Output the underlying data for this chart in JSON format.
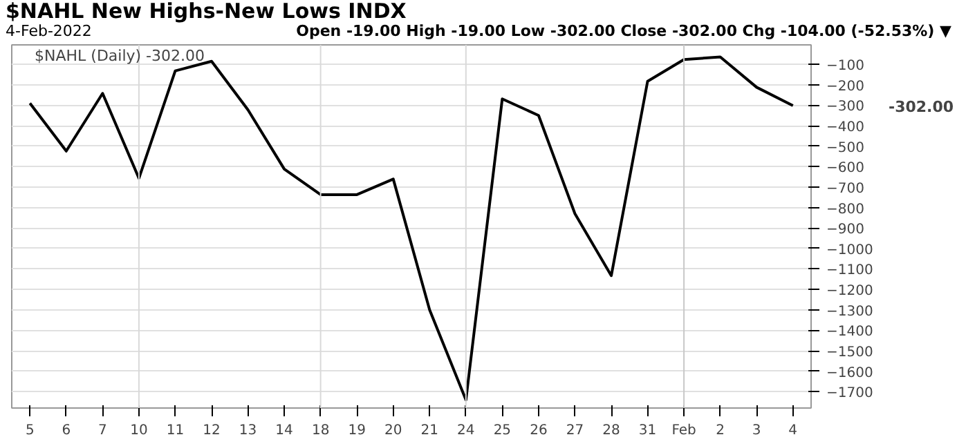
{
  "chart_data": {
    "type": "line",
    "title": "$NAHL New Highs-New Lows INDX",
    "subtitle": "4-Feb-2022",
    "annotations": [
      "Open -19.00  High -19.00  Low -302.00  Close -302.00  Chg -104.00 (-52.53%) ▼",
      "-302.00"
    ],
    "categories": [
      "5",
      "6",
      "7",
      "10",
      "11",
      "12",
      "13",
      "14",
      "18",
      "19",
      "20",
      "21",
      "24",
      "25",
      "26",
      "27",
      "28",
      "31",
      "Feb",
      "2",
      "3",
      "4"
    ],
    "series": [
      {
        "name": "$NAHL (Daily) -302.00",
        "color": "#000000",
        "values": [
          -290,
          -524,
          -242,
          -657,
          -132,
          -85,
          -322,
          -612,
          -737,
          -737,
          -661,
          -1300,
          -1740,
          -269,
          -350,
          -830,
          -1133,
          -183,
          -77,
          -64,
          -212,
          -302
        ]
      }
    ],
    "ylim": [
      -1780,
      -5
    ],
    "yticks": [
      -100,
      -200,
      -300,
      -400,
      -500,
      -600,
      -700,
      -800,
      -900,
      -1000,
      -1100,
      -1200,
      -1300,
      -1400,
      -1500,
      -1600,
      -1700
    ],
    "grid": "y",
    "ref_lines": [
      {
        "axis": "x",
        "value": "10",
        "color": "#d9d9d9"
      },
      {
        "axis": "x",
        "value": "18",
        "color": "#d9d9d9"
      },
      {
        "axis": "x",
        "value": "24",
        "color": "#d9d9d9"
      },
      {
        "axis": "x",
        "value": "Feb",
        "color": "#c8c8c8"
      }
    ],
    "legend": "top left",
    "marker": "none"
  }
}
